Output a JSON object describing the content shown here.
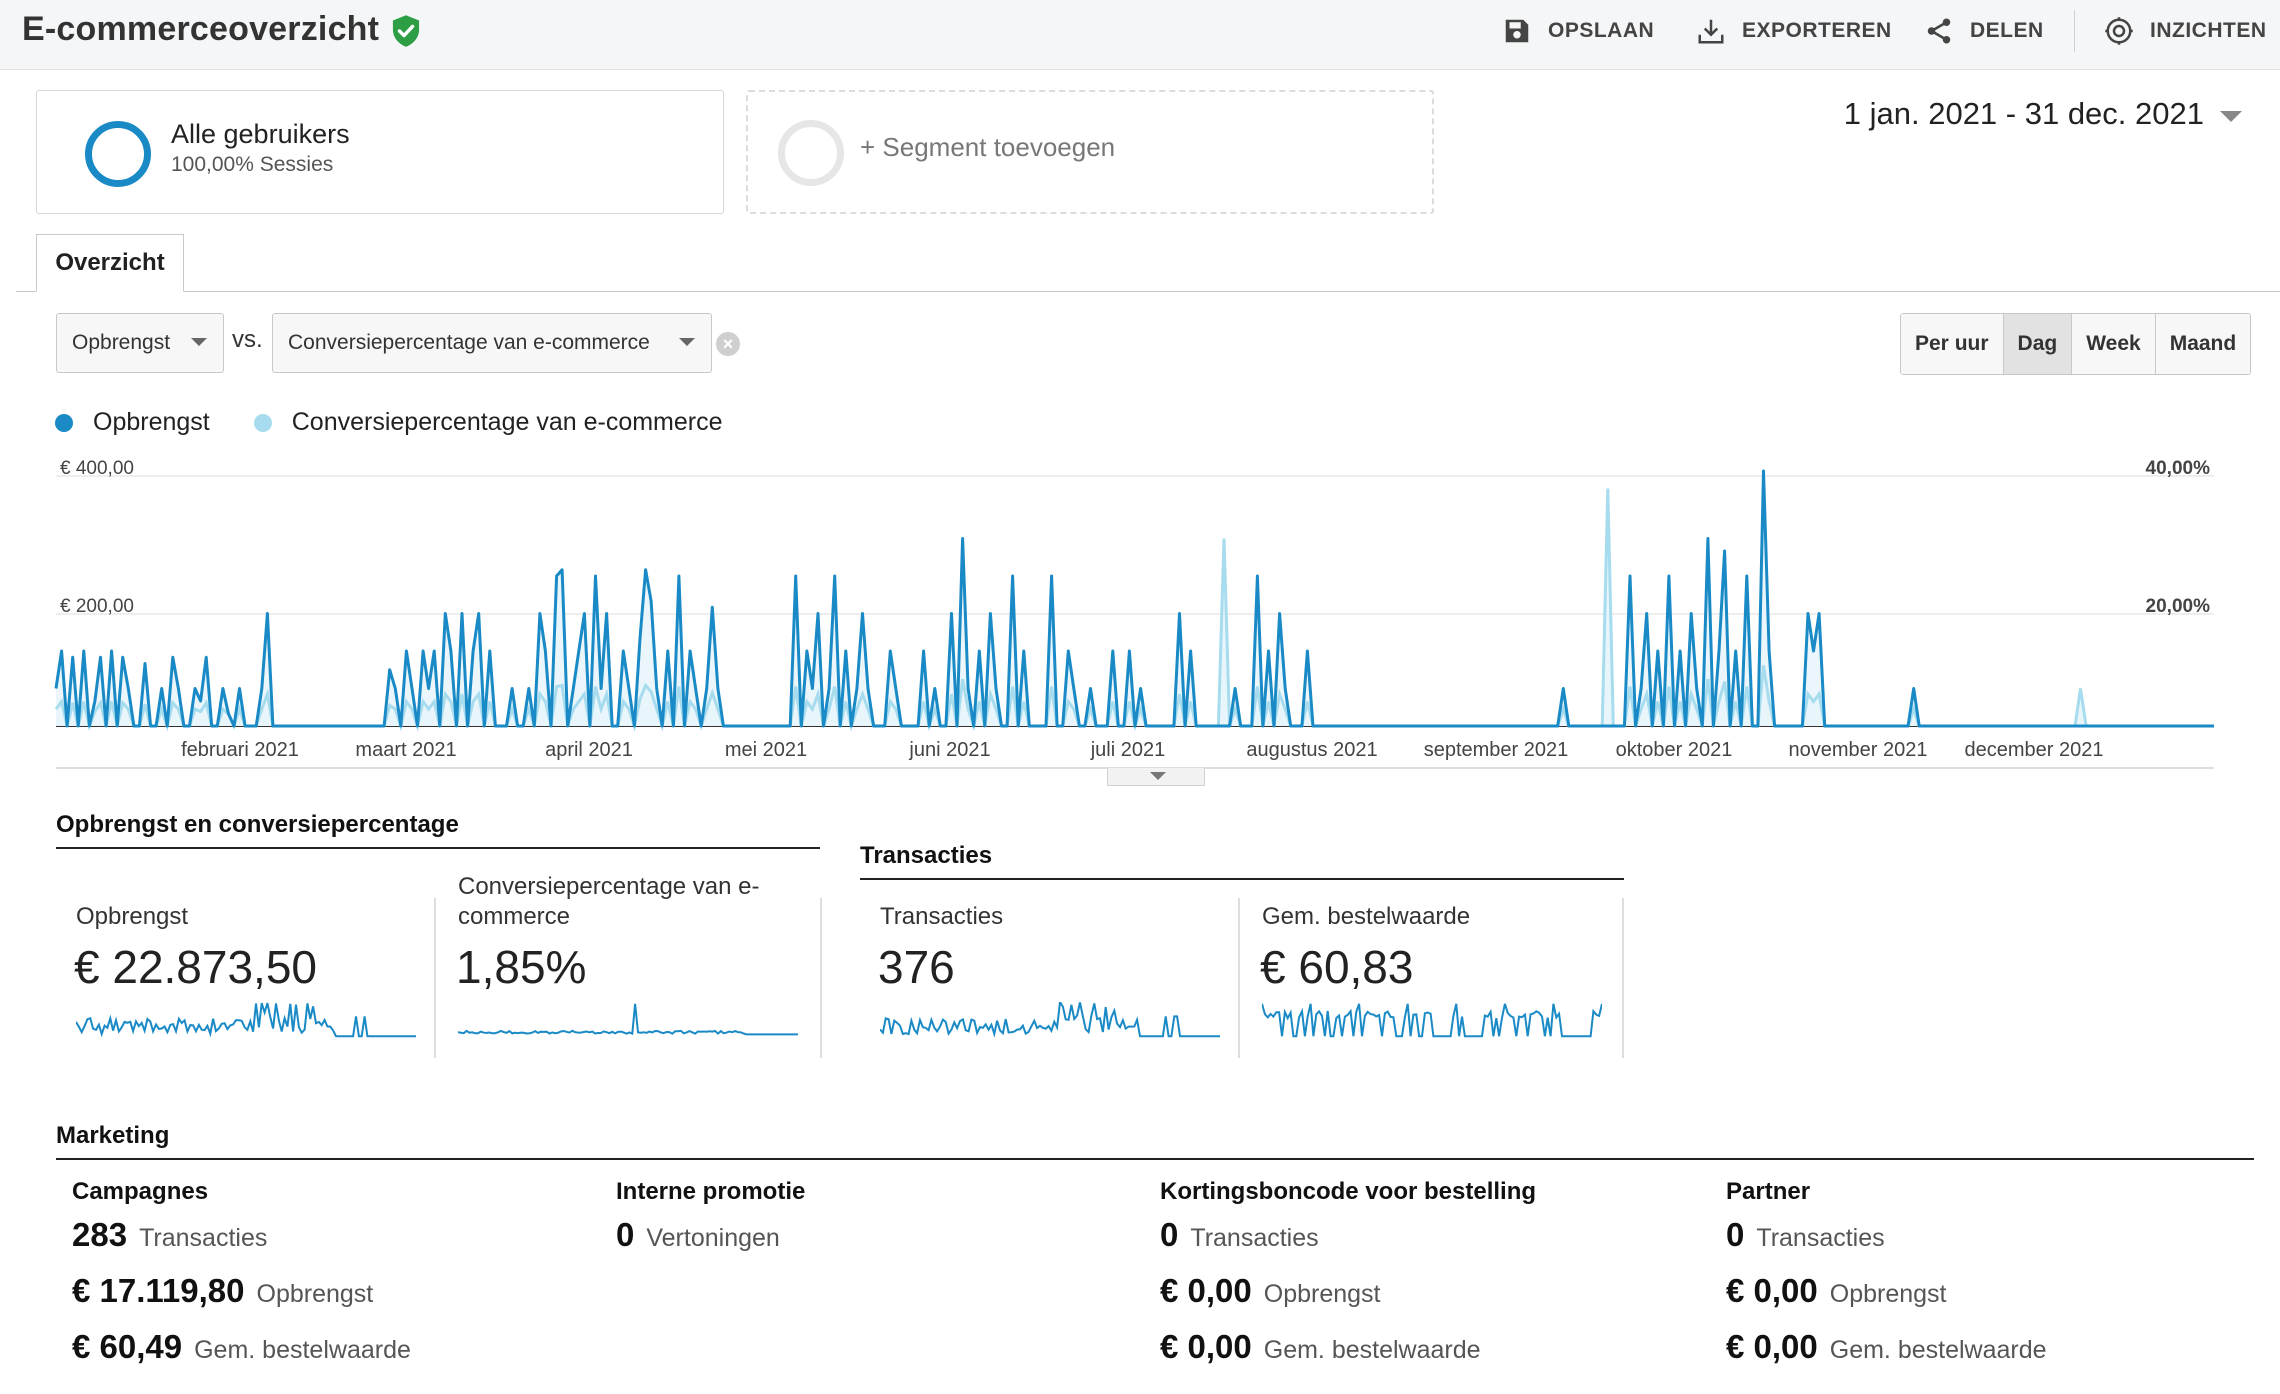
{
  "header": {
    "title": "E-commerceoverzicht",
    "actions": [
      {
        "label": "OPSLAAN",
        "icon": "save-icon"
      },
      {
        "label": "EXPORTEREN",
        "icon": "download-icon"
      },
      {
        "label": "DELEN",
        "icon": "share-icon"
      },
      {
        "label": "INZICHTEN",
        "icon": "insights-icon"
      }
    ]
  },
  "segments": {
    "active": {
      "name": "Alle gebruikers",
      "sub": "100,00% Sessies"
    },
    "add_label": "+ Segment toevoegen"
  },
  "date_range": "1 jan. 2021 - 31 dec. 2021",
  "tabs": [
    {
      "label": "Overzicht"
    }
  ],
  "controls": {
    "metric1": "Opbrengst",
    "vs": "vs.",
    "metric2": "Conversiepercentage van e-commerce",
    "granularity": [
      "Per uur",
      "Dag",
      "Week",
      "Maand"
    ],
    "granularity_selected": "Dag"
  },
  "colors": {
    "primary": "#1a8ac6",
    "secondary": "#a6dcee",
    "fill": "#e8f5fb"
  },
  "chart_data": {
    "type": "line",
    "legend": [
      "Opbrengst",
      "Conversiepercentage van e-commerce"
    ],
    "y_left_ticks": [
      "€ 400,00",
      "€ 200,00"
    ],
    "y_right_ticks": [
      "40,00%",
      "20,00%"
    ],
    "x_labels": [
      "februari 2021",
      "maart 2021",
      "april 2021",
      "mei 2021",
      "juni 2021",
      "juli 2021",
      "augustus 2021",
      "september 2021",
      "oktober 2021",
      "november 2021",
      "december 2021"
    ],
    "y_left_range": [
      0,
      400
    ],
    "y_right_range": [
      0,
      40
    ],
    "series": [
      {
        "name": "Opbrengst",
        "daily": [
          60,
          120,
          0,
          110,
          0,
          120,
          0,
          40,
          110,
          0,
          120,
          0,
          110,
          60,
          0,
          0,
          100,
          0,
          0,
          60,
          0,
          110,
          60,
          0,
          0,
          60,
          40,
          110,
          0,
          0,
          60,
          20,
          0,
          60,
          0,
          0,
          0,
          60,
          180,
          0,
          0,
          0,
          0,
          0,
          0,
          0,
          0,
          0,
          0,
          0,
          0,
          0,
          0,
          0,
          0,
          0,
          0,
          0,
          0,
          0,
          90,
          60,
          0,
          120,
          60,
          0,
          120,
          60,
          120,
          0,
          180,
          120,
          0,
          180,
          0,
          120,
          180,
          0,
          120,
          0,
          0,
          0,
          60,
          0,
          0,
          60,
          0,
          180,
          120,
          0,
          240,
          250,
          0,
          60,
          120,
          180,
          0,
          240,
          60,
          180,
          0,
          0,
          120,
          60,
          0,
          140,
          250,
          200,
          60,
          0,
          120,
          0,
          240,
          0,
          120,
          60,
          0,
          60,
          190,
          60,
          0,
          0,
          0,
          0,
          0,
          0,
          0,
          0,
          0,
          0,
          0,
          0,
          0,
          240,
          0,
          120,
          60,
          180,
          0,
          60,
          240,
          0,
          120,
          0,
          60,
          180,
          60,
          0,
          0,
          0,
          120,
          60,
          0,
          0,
          0,
          0,
          120,
          0,
          60,
          0,
          0,
          180,
          0,
          300,
          60,
          0,
          120,
          0,
          180,
          60,
          0,
          0,
          240,
          0,
          120,
          0,
          0,
          0,
          0,
          240,
          0,
          0,
          120,
          60,
          0,
          0,
          60,
          0,
          0,
          0,
          120,
          0,
          0,
          120,
          0,
          60,
          0,
          0,
          0,
          0,
          0,
          0,
          180,
          0,
          120,
          0,
          0,
          0,
          0,
          0,
          0,
          0,
          60,
          0,
          0,
          0,
          240,
          0,
          120,
          0,
          180,
          60,
          0,
          0,
          0,
          120,
          0,
          0,
          0,
          0,
          0,
          0,
          0,
          0,
          0,
          0,
          0,
          0,
          0,
          0,
          0,
          0,
          0,
          0,
          0,
          0,
          0,
          0,
          0,
          0,
          0,
          0,
          0,
          0,
          0,
          0,
          0,
          0,
          0,
          0,
          0,
          0,
          0,
          0,
          0,
          0,
          0,
          0,
          0,
          0,
          0,
          60,
          0,
          0,
          0,
          0,
          0,
          0,
          0,
          0,
          0,
          0,
          0,
          240,
          0,
          60,
          180,
          0,
          120,
          0,
          240,
          0,
          120,
          0,
          180,
          60,
          0,
          300,
          0,
          120,
          280,
          0,
          120,
          0,
          240,
          0,
          0,
          410,
          120,
          0,
          0,
          0,
          0,
          0,
          0,
          180,
          120,
          180,
          0,
          0,
          0,
          0,
          0,
          0,
          0,
          0,
          0,
          0,
          0,
          0,
          0,
          0,
          0,
          0,
          60,
          0,
          0,
          0,
          0,
          0,
          0,
          0,
          0,
          0,
          0,
          0,
          0,
          0,
          0,
          0,
          0,
          0,
          0,
          0,
          0,
          0,
          0,
          0,
          0,
          0,
          0,
          0,
          0,
          0,
          0,
          0,
          0,
          0,
          0,
          0,
          0,
          0,
          0,
          0,
          0,
          0,
          0,
          0,
          0,
          0,
          0,
          0,
          0,
          0,
          0,
          0,
          0,
          0,
          0
        ]
      },
      {
        "name": "Conversiepercentage van e-commerce",
        "peaks_pct": {
          "jul-end": 30,
          "okt": 38,
          "dec-end": 6
        }
      }
    ]
  },
  "summary": {
    "group1_title": "Opbrengst en conversiepercentage",
    "group2_title": "Transacties",
    "cards": [
      {
        "label": "Opbrengst",
        "value": "€ 22.873,50"
      },
      {
        "label": "Conversiepercentage van e-commerce",
        "value": "1,85%"
      },
      {
        "label": "Transacties",
        "value": "376"
      },
      {
        "label": "Gem. bestelwaarde",
        "value": "€ 60,83"
      }
    ]
  },
  "marketing": {
    "title": "Marketing",
    "columns": [
      {
        "title": "Campagnes",
        "rows": [
          {
            "num": "283",
            "unit": "Transacties"
          },
          {
            "num": "€ 17.119,80",
            "unit": "Opbrengst"
          },
          {
            "num": "€ 60,49",
            "unit": "Gem. bestelwaarde"
          }
        ]
      },
      {
        "title": "Interne promotie",
        "rows": [
          {
            "num": "0",
            "unit": "Vertoningen"
          }
        ]
      },
      {
        "title": "Kortingsboncode voor bestelling",
        "rows": [
          {
            "num": "0",
            "unit": "Transacties"
          },
          {
            "num": "€ 0,00",
            "unit": "Opbrengst"
          },
          {
            "num": "€ 0,00",
            "unit": "Gem. bestelwaarde"
          }
        ]
      },
      {
        "title": "Partner",
        "rows": [
          {
            "num": "0",
            "unit": "Transacties"
          },
          {
            "num": "€ 0,00",
            "unit": "Opbrengst"
          },
          {
            "num": "€ 0,00",
            "unit": "Gem. bestelwaarde"
          }
        ]
      }
    ]
  }
}
